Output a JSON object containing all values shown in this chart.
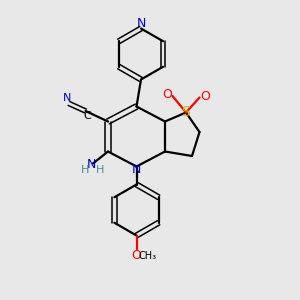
{
  "bg_color": "#e8e8e8",
  "bond_color": "#000000",
  "N_color": "#0000cc",
  "O_color": "#ff0000",
  "S_color": "#bbbb00",
  "H_color": "#4a9090",
  "figsize": [
    3.0,
    3.0
  ],
  "dpi": 100,
  "xlim": [
    0,
    10
  ],
  "ylim": [
    0,
    10
  ],
  "lw": 1.6,
  "lw2": 1.1
}
